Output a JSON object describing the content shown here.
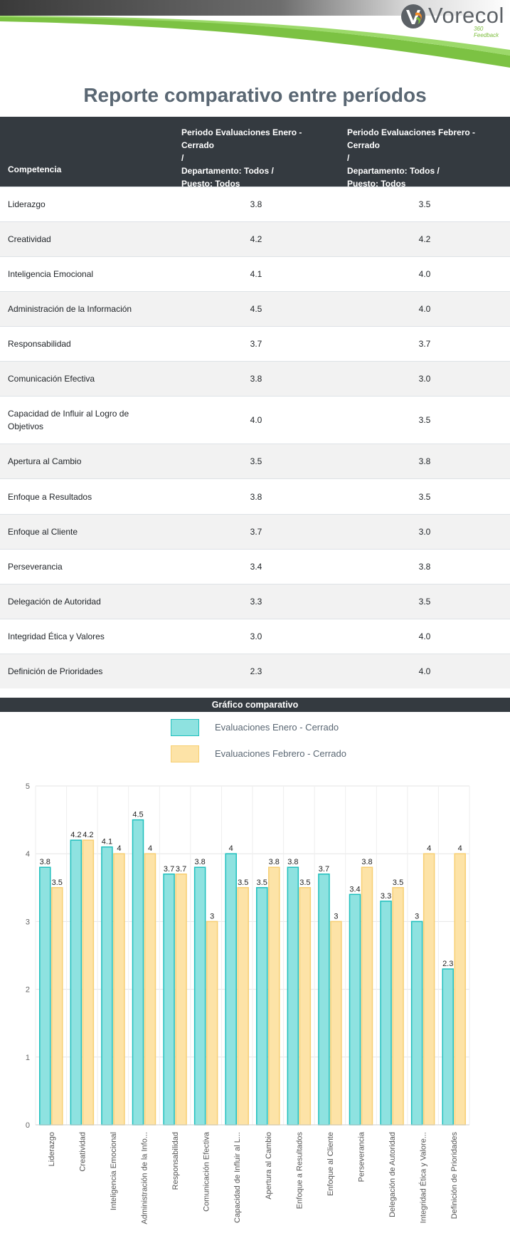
{
  "brand": {
    "name": "Vorecol",
    "tagline": "360 Feedback"
  },
  "page_title": "Reporte comparativo entre períodos",
  "table": {
    "header": {
      "competencia": "Competencia",
      "period1": [
        "Periodo Evaluaciones Enero - Cerrado",
        "/",
        "Departamento: Todos /",
        "Puesto: Todos"
      ],
      "period2": [
        "Periodo Evaluaciones Febrero - Cerrado",
        "/",
        "Departamento: Todos /",
        "Puesto: Todos"
      ]
    },
    "rows": [
      {
        "name": "Liderazgo",
        "v1": "3.8",
        "v2": "3.5"
      },
      {
        "name": "Creatividad",
        "v1": "4.2",
        "v2": "4.2"
      },
      {
        "name": "Inteligencia Emocional",
        "v1": "4.1",
        "v2": "4.0"
      },
      {
        "name": "Administración de la Información",
        "v1": "4.5",
        "v2": "4.0"
      },
      {
        "name": "Responsabilidad",
        "v1": "3.7",
        "v2": "3.7"
      },
      {
        "name": "Comunicación Efectiva",
        "v1": "3.8",
        "v2": "3.0"
      },
      {
        "name": "Capacidad de Influir al Logro de Objetivos",
        "v1": "4.0",
        "v2": "3.5"
      },
      {
        "name": "Apertura al Cambio",
        "v1": "3.5",
        "v2": "3.8"
      },
      {
        "name": "Enfoque a Resultados",
        "v1": "3.8",
        "v2": "3.5"
      },
      {
        "name": "Enfoque al Cliente",
        "v1": "3.7",
        "v2": "3.0"
      },
      {
        "name": "Perseverancia",
        "v1": "3.4",
        "v2": "3.8"
      },
      {
        "name": "Delegación de Autoridad",
        "v1": "3.3",
        "v2": "3.5"
      },
      {
        "name": "Integridad Ética y Valores",
        "v1": "3.0",
        "v2": "4.0"
      },
      {
        "name": "Definición de Prioridades",
        "v1": "2.3",
        "v2": "4.0"
      }
    ]
  },
  "chart_section_title": "Gráfico comparativo",
  "chart_data": {
    "type": "bar",
    "categories": [
      "Liderazgo",
      "Creatividad",
      "Inteligencia Emocional",
      "Administración de la Info...",
      "Responsabilidad",
      "Comunicación Efectiva",
      "Capacidad de Influir al L...",
      "Apertura al Cambio",
      "Enfoque a Resultados",
      "Enfoque al Cliente",
      "Perseverancia",
      "Delegación de Autoridad",
      "Integridad Ética y Valore...",
      "Definición de Prioridades"
    ],
    "series": [
      {
        "name": "Evaluaciones Enero - Cerrado",
        "values": [
          3.8,
          4.2,
          4.1,
          4.5,
          3.7,
          3.8,
          4,
          3.5,
          3.8,
          3.7,
          3.4,
          3.3,
          3,
          2.3
        ],
        "fill": "#8ee2e0",
        "stroke": "#1fbfbd"
      },
      {
        "name": "Evaluaciones Febrero - Cerrado",
        "values": [
          3.5,
          4.2,
          4,
          4,
          3.7,
          3,
          3.5,
          3.8,
          3.5,
          3,
          3.8,
          3.5,
          4,
          4
        ],
        "fill": "#fde3a7",
        "stroke": "#f7cf73"
      }
    ],
    "ylim": [
      0,
      5
    ],
    "yticks": [
      "0",
      "1",
      "2",
      "3",
      "4",
      "5"
    ],
    "grid": true,
    "legend_position": "top"
  }
}
